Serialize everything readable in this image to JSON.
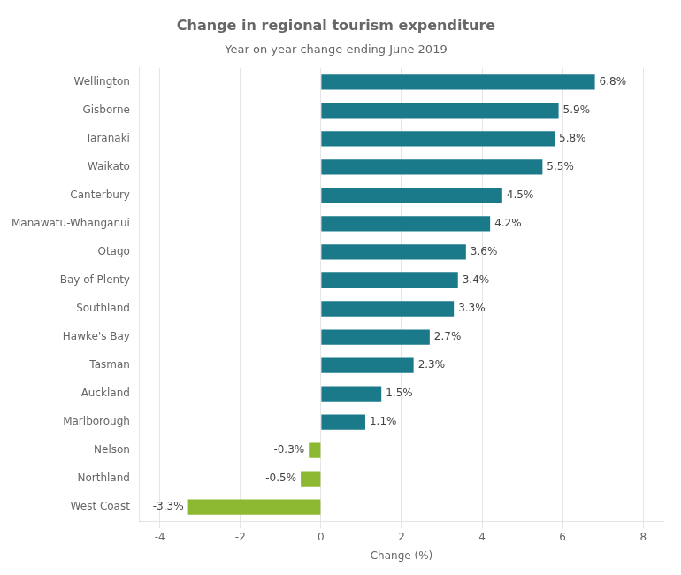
{
  "chart_data": {
    "type": "bar",
    "orientation": "horizontal",
    "title": "Change in regional tourism expenditure",
    "subtitle": "Year on year change ending June 2019",
    "xlabel": "Change (%)",
    "categories": [
      "Wellington",
      "Gisborne",
      "Taranaki",
      "Waikato",
      "Canterbury",
      "Manawatu-Whanganui",
      "Otago",
      "Bay of Plenty",
      "Southland",
      "Hawke's Bay",
      "Tasman",
      "Auckland",
      "Marlborough",
      "Nelson",
      "Northland",
      "West Coast"
    ],
    "values": [
      6.8,
      5.9,
      5.8,
      5.5,
      4.5,
      4.2,
      3.6,
      3.4,
      3.3,
      2.7,
      2.3,
      1.5,
      1.1,
      -0.3,
      -0.5,
      -3.3
    ],
    "value_labels": [
      "6.8%",
      "5.9%",
      "5.8%",
      "5.5%",
      "4.5%",
      "4.2%",
      "3.6%",
      "3.4%",
      "3.3%",
      "2.7%",
      "2.3%",
      "1.5%",
      "1.1%",
      "-0.3%",
      "-0.5%",
      "-3.3%"
    ],
    "colors": [
      "#1a7a8a",
      "#1a7a8a",
      "#1a7a8a",
      "#1a7a8a",
      "#1a7a8a",
      "#1a7a8a",
      "#1a7a8a",
      "#1a7a8a",
      "#1a7a8a",
      "#1a7a8a",
      "#1a7a8a",
      "#1a7a8a",
      "#1a7a8a",
      "#8db832",
      "#8db832",
      "#8db832"
    ],
    "xlim": [
      -4.5,
      8.5
    ],
    "xticks": [
      -4,
      -2,
      0,
      2,
      4,
      6,
      8
    ],
    "grid": true,
    "data_labels": true
  }
}
